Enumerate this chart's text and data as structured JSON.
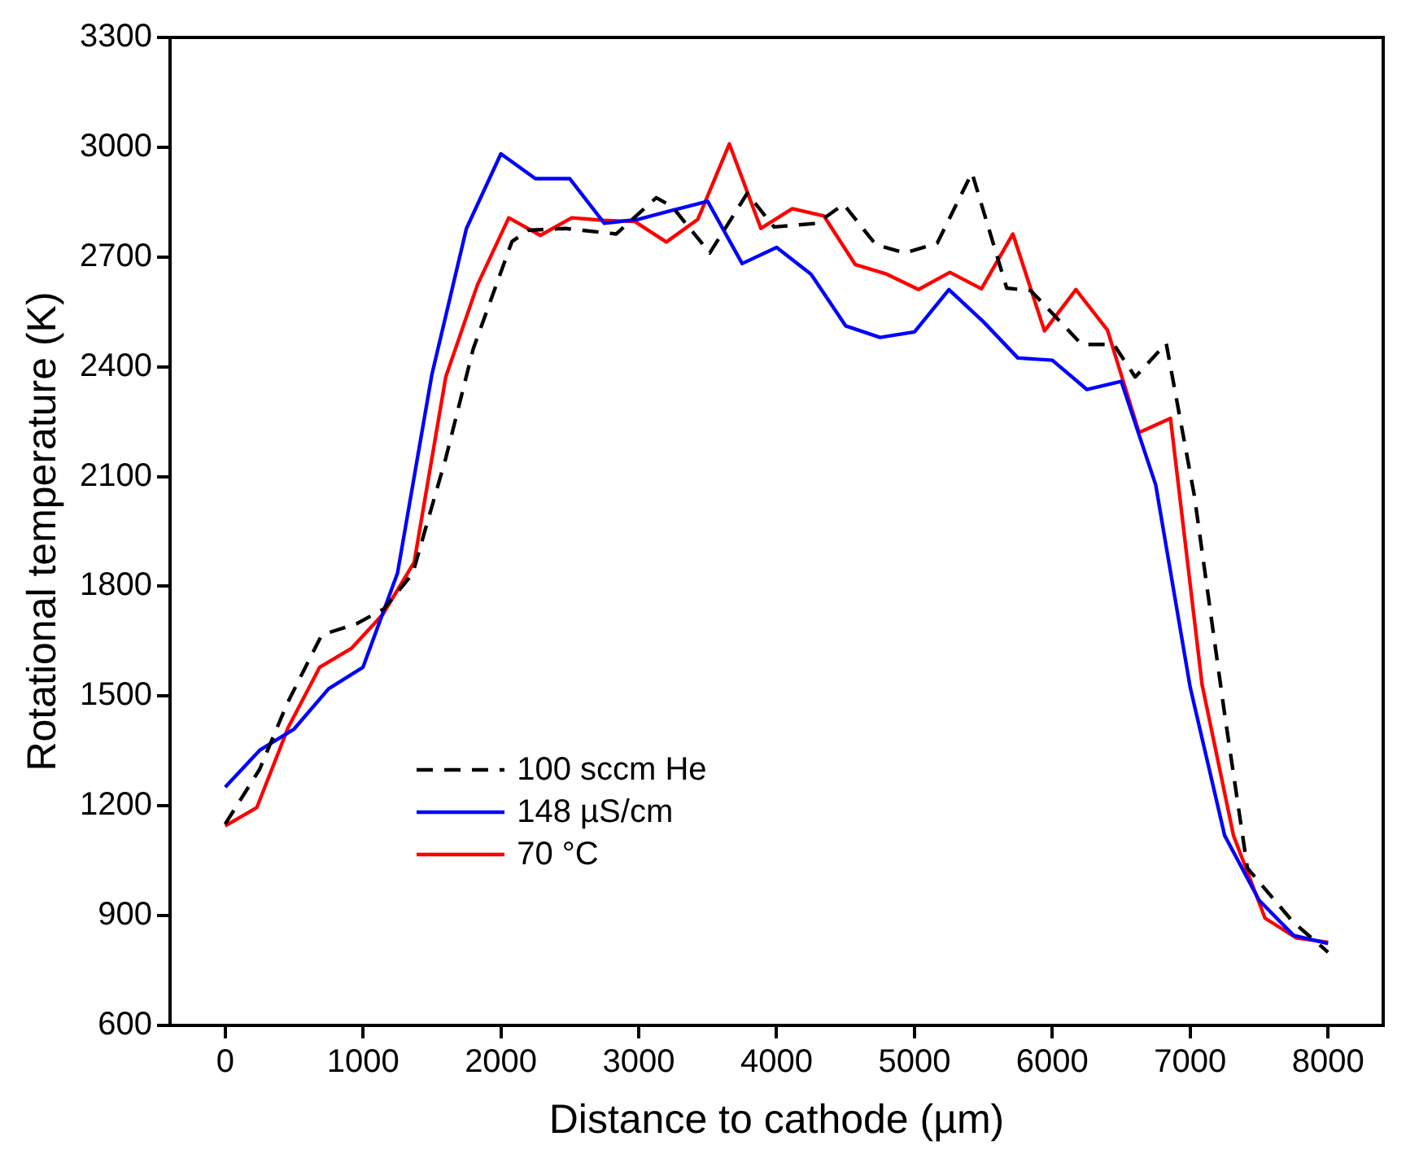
{
  "chart_data": {
    "type": "line",
    "xlabel": "Distance to cathode (µm)",
    "ylabel": "Rotational temperature (K)",
    "xlim": [
      -400,
      8400
    ],
    "xticks": [
      0,
      1000,
      2000,
      3000,
      4000,
      5000,
      6000,
      7000,
      8000
    ],
    "ylim": [
      600,
      3300
    ],
    "yticks": [
      600,
      900,
      1200,
      1500,
      1800,
      2100,
      2400,
      2700,
      3000,
      3300
    ],
    "grid": false,
    "legend": "bottom left",
    "marker": "none",
    "series": [
      {
        "name": "100 sccm He",
        "color": "#000000",
        "line_style": "dashed",
        "x": [
          0,
          250,
          450,
          700,
          955,
          1150,
          1360,
          1600,
          1800,
          2080,
          2196,
          2468,
          2837,
          3127,
          3244,
          3515,
          3787,
          3981,
          4292,
          4486,
          4719,
          4932,
          5165,
          5417,
          5669,
          5844,
          6213,
          6446,
          6601,
          6826,
          7030,
          7250,
          7415,
          7745,
          8000
        ],
        "values": [
          1150,
          1300,
          1480,
          1667,
          1698,
          1738,
          1835,
          2150,
          2450,
          2742,
          2773,
          2778,
          2763,
          2862,
          2837,
          2711,
          2874,
          2782,
          2792,
          2844,
          2734,
          2711,
          2738,
          2930,
          2615,
          2608,
          2461,
          2461,
          2372,
          2464,
          2048,
          1450,
          1030,
          883,
          800
        ]
      },
      {
        "name": "148 µS/cm",
        "color": "#0000ff",
        "line_style": "solid",
        "x": [
          0,
          250,
          500,
          750,
          1000,
          1250,
          1500,
          1750,
          2000,
          2250,
          2500,
          2750,
          3000,
          3250,
          3500,
          3750,
          4000,
          4250,
          4500,
          4750,
          5000,
          5250,
          5500,
          5750,
          6000,
          6250,
          6500,
          6750,
          7000,
          7250,
          7500,
          7750,
          8000
        ],
        "values": [
          1251,
          1352,
          1410,
          1520,
          1579,
          1836,
          2380,
          2778,
          2982,
          2914,
          2914,
          2792,
          2803,
          2828,
          2852,
          2682,
          2726,
          2653,
          2512,
          2480,
          2495,
          2611,
          2523,
          2424,
          2418,
          2338,
          2360,
          2077,
          1524,
          1119,
          942,
          846,
          824
        ]
      },
      {
        "name": "70 °C",
        "color": "#ff0000",
        "line_style": "solid",
        "x": [
          0,
          229,
          457,
          686,
          914,
          1143,
          1371,
          1600,
          1829,
          2057,
          2286,
          2514,
          2743,
          2971,
          3200,
          3429,
          3657,
          3886,
          4114,
          4343,
          4571,
          4800,
          5029,
          5257,
          5486,
          5714,
          5943,
          6171,
          6400,
          6629,
          6857,
          7086,
          7314,
          7543,
          7771,
          8000
        ],
        "values": [
          1145,
          1195,
          1414,
          1579,
          1630,
          1723,
          1866,
          2372,
          2623,
          2807,
          2759,
          2807,
          2800,
          2797,
          2741,
          2803,
          3009,
          2778,
          2832,
          2812,
          2679,
          2653,
          2611,
          2658,
          2613,
          2763,
          2498,
          2611,
          2500,
          2220,
          2259,
          1532,
          1119,
          893,
          839,
          827
        ]
      }
    ]
  }
}
